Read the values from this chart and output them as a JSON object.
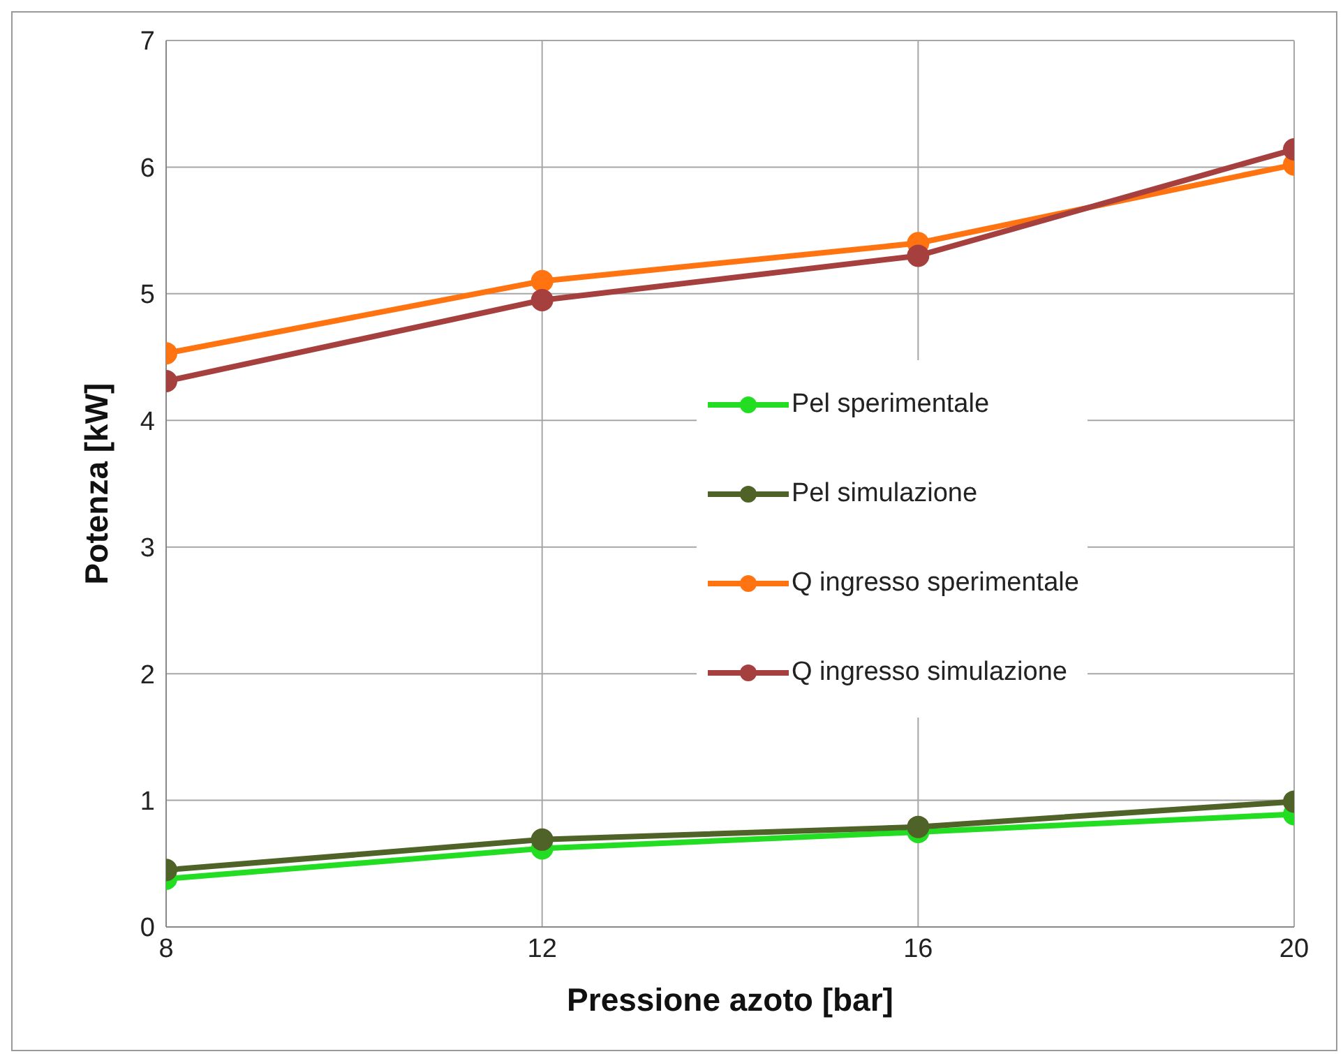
{
  "chart_data": {
    "type": "line",
    "xlabel": "Pressione azoto [bar]",
    "ylabel": "Potenza [kW]",
    "x": [
      8,
      12,
      16,
      20
    ],
    "series": [
      {
        "name": "Pel sperimentale",
        "color": "#22dd22",
        "values": [
          0.38,
          0.62,
          0.75,
          0.89
        ]
      },
      {
        "name": "Pel simulazione",
        "color": "#4f6228",
        "values": [
          0.45,
          0.69,
          0.79,
          0.99
        ]
      },
      {
        "name": "Q ingresso sperimentale",
        "color": "#ff7410",
        "values": [
          4.53,
          5.1,
          5.4,
          6.02
        ]
      },
      {
        "name": "Q ingresso simulazione",
        "color": "#a5403e",
        "values": [
          4.31,
          4.95,
          5.3,
          6.14
        ]
      }
    ],
    "xlim": [
      8,
      20
    ],
    "xticks": [
      8,
      12,
      16,
      20
    ],
    "ylim": [
      0,
      7
    ],
    "yticks": [
      0,
      1,
      2,
      3,
      4,
      5,
      6,
      7
    ],
    "grid": true,
    "legend": "right",
    "marker": "circle",
    "line_style": "solid"
  }
}
